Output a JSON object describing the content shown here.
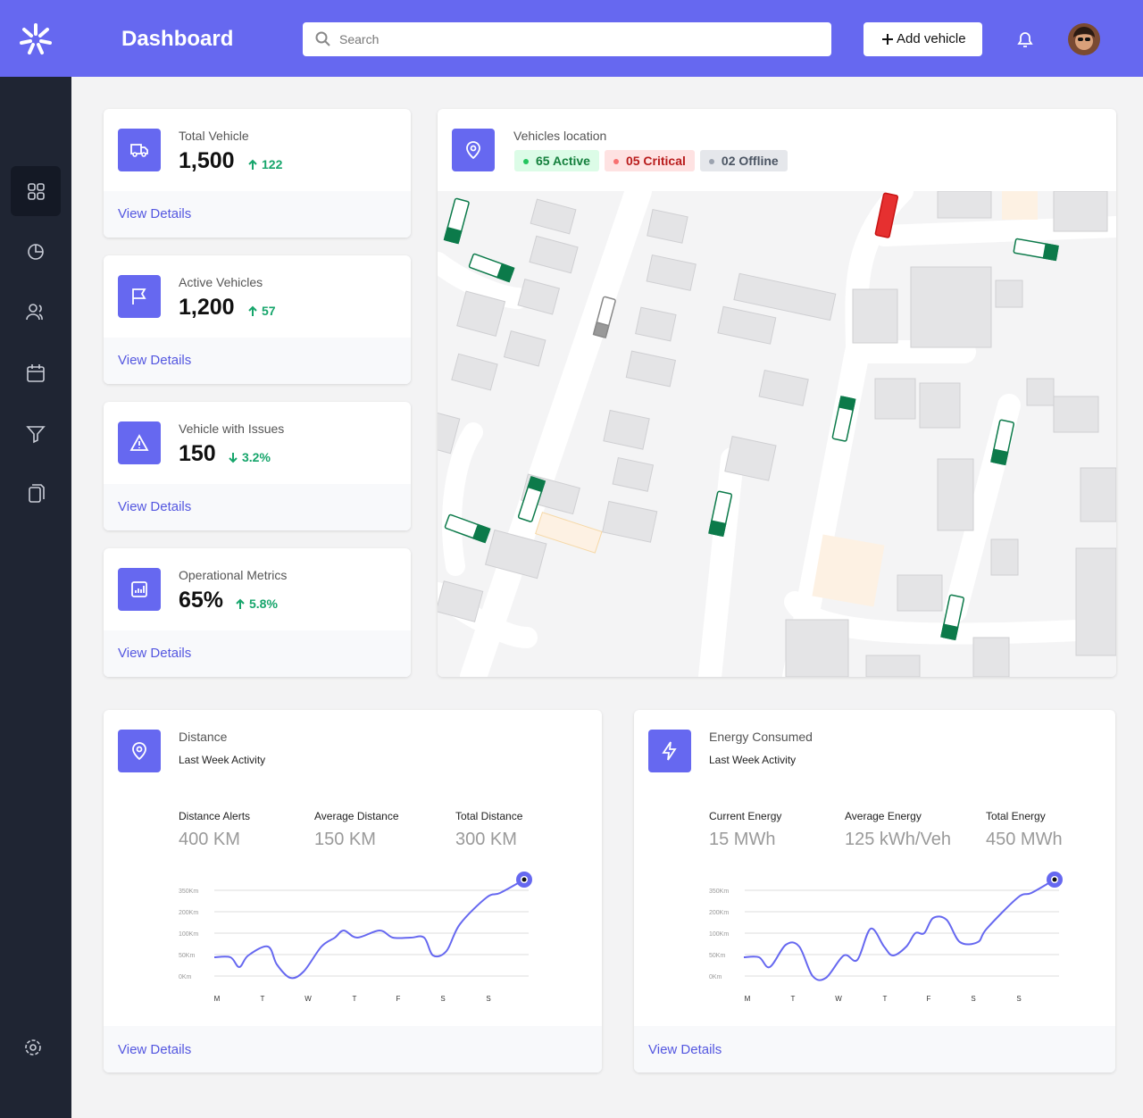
{
  "header": {
    "title": "Dashboard",
    "search_placeholder": "Search",
    "add_button": "Add vehicle"
  },
  "stats": [
    {
      "title": "Total Vehicle",
      "value": "1,500",
      "change": "122",
      "link": "View Details"
    },
    {
      "title": "Active Vehicles",
      "value": "1,200",
      "change": "57",
      "link": "View Details"
    },
    {
      "title": "Vehicle with Issues",
      "value": "150",
      "change": "3.2%",
      "link": "View Details"
    },
    {
      "title": "Operational Metrics",
      "value": "65%",
      "change": "5.8%",
      "link": "View Details"
    }
  ],
  "map": {
    "title": "Vehicles location",
    "badges": [
      "65 Active",
      "05 Critical",
      "02 Offline"
    ]
  },
  "panels": [
    {
      "title": "Distance",
      "subtitle": "Last Week Activity",
      "metrics": [
        {
          "label": "Distance Alerts",
          "value": "400 KM"
        },
        {
          "label": "Average Distance",
          "value": "150 KM"
        },
        {
          "label": "Total Distance",
          "value": "300 KM"
        }
      ],
      "axis": [
        "350Km",
        "200Km",
        "100Km",
        "50Km",
        "0Km"
      ],
      "days": [
        "M",
        "T",
        "W",
        "T",
        "F",
        "S",
        "S"
      ],
      "link": "View Details"
    },
    {
      "title": "Energy Consumed",
      "subtitle": "Last Week Activity",
      "metrics": [
        {
          "label": "Current Energy",
          "value": "15 MWh"
        },
        {
          "label": "Average Energy",
          "value": "125 kWh/Veh"
        },
        {
          "label": "Total Energy",
          "value": "450 MWh"
        }
      ],
      "axis": [
        "350Km",
        "200Km",
        "100Km",
        "50Km",
        "0Km"
      ],
      "days": [
        "M",
        "T",
        "W",
        "T",
        "F",
        "S",
        "S"
      ],
      "link": "View Details"
    }
  ]
}
